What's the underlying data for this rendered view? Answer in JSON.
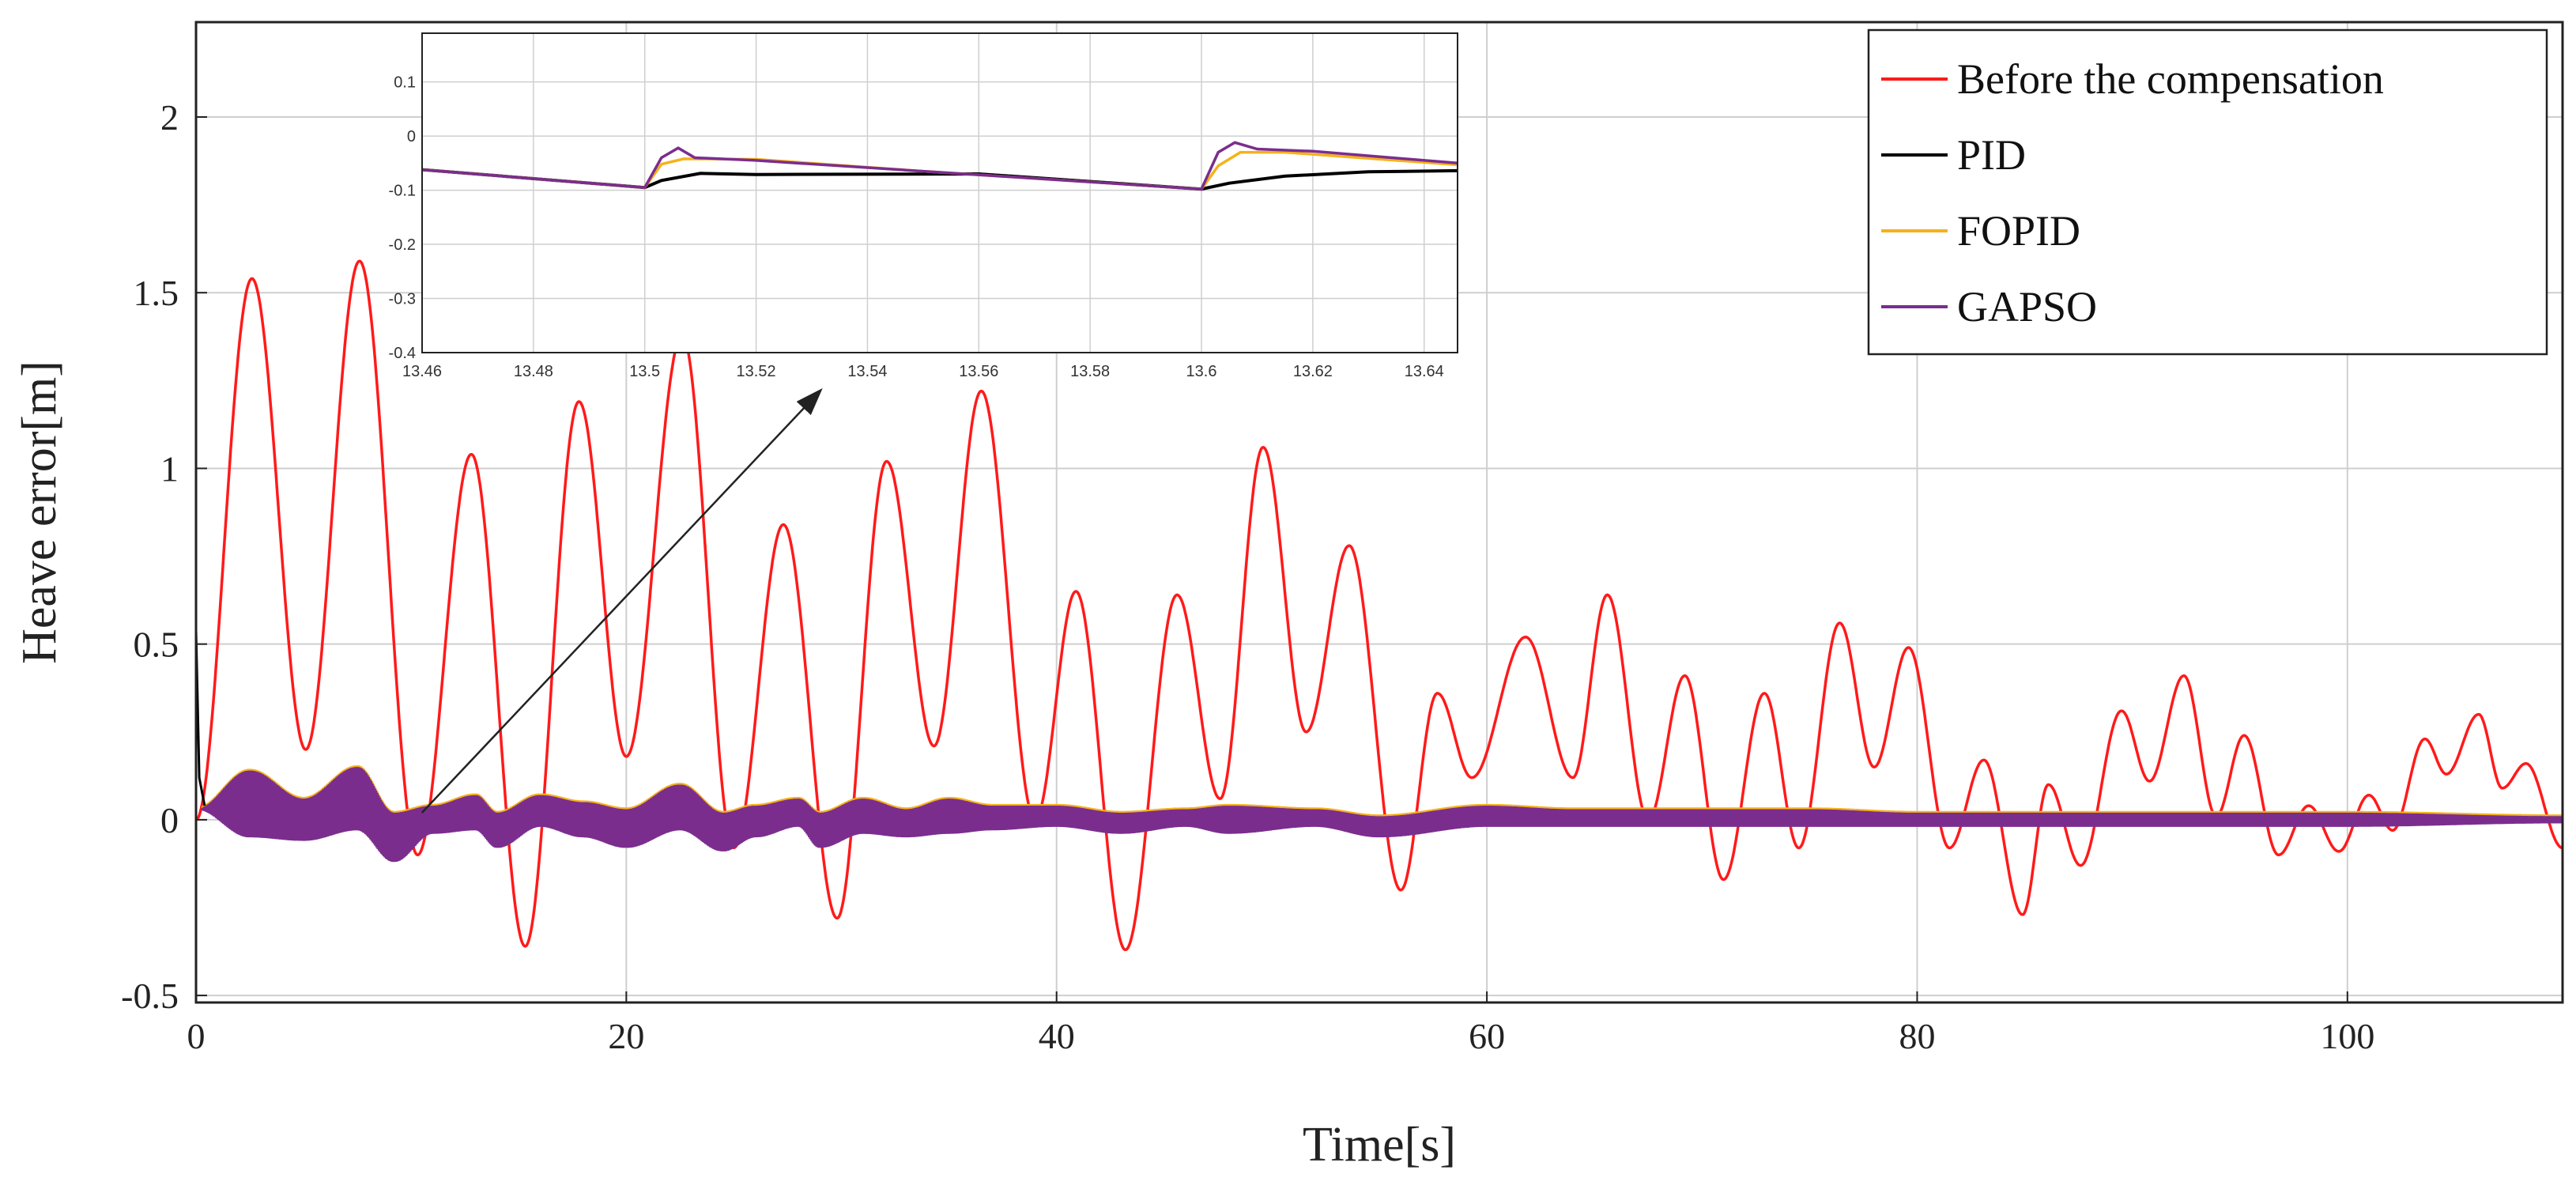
{
  "chart_data": {
    "type": "line",
    "title": "",
    "xlabel": "Time[s]",
    "ylabel": "Heave error[m]",
    "xlim": [
      0,
      110
    ],
    "ylim": [
      -0.52,
      2.27
    ],
    "grid": true,
    "legend_position": "top-right",
    "colors": {
      "before": "#ff1a1a",
      "pid": "#000000",
      "fopid": "#f5b21b",
      "gapso": "#7b2d8e",
      "grid": "#cfcfcf",
      "axis": "#222222"
    },
    "x_ticks": [
      {
        "value": 0,
        "label": "0"
      },
      {
        "value": 20,
        "label": "20"
      },
      {
        "value": 40,
        "label": "40"
      },
      {
        "value": 60,
        "label": "60"
      },
      {
        "value": 80,
        "label": "80"
      },
      {
        "value": 100,
        "label": "100"
      }
    ],
    "y_ticks": [
      {
        "value": -0.5,
        "label": "-0.5"
      },
      {
        "value": 0,
        "label": "0"
      },
      {
        "value": 0.5,
        "label": "0.5"
      },
      {
        "value": 1,
        "label": "1"
      },
      {
        "value": 1.5,
        "label": "1.5"
      },
      {
        "value": 2,
        "label": "2"
      }
    ],
    "legend": [
      {
        "key": "before",
        "label": "Before the compensation"
      },
      {
        "key": "pid",
        "label": "PID"
      },
      {
        "key": "fopid",
        "label": "FOPID"
      },
      {
        "key": "gapso",
        "label": "GAPSO"
      }
    ],
    "series": [
      {
        "name": "Before the compensation",
        "key": "before",
        "peaks": [
          [
            0,
            0.0
          ],
          [
            2.6,
            1.54
          ],
          [
            5.1,
            0.2
          ],
          [
            7.6,
            1.59
          ],
          [
            10.3,
            -0.1
          ],
          [
            12.8,
            1.04
          ],
          [
            15.3,
            -0.36
          ],
          [
            17.8,
            1.19
          ],
          [
            20.0,
            0.18
          ],
          [
            22.6,
            1.38
          ],
          [
            25.0,
            -0.08
          ],
          [
            27.3,
            0.84
          ],
          [
            29.8,
            -0.28
          ],
          [
            32.1,
            1.02
          ],
          [
            34.3,
            0.21
          ],
          [
            36.5,
            1.22
          ],
          [
            39.0,
            0.0
          ],
          [
            40.9,
            0.65
          ],
          [
            43.2,
            -0.37
          ],
          [
            45.6,
            0.64
          ],
          [
            47.6,
            0.06
          ],
          [
            49.6,
            1.06
          ],
          [
            51.6,
            0.25
          ],
          [
            53.6,
            0.78
          ],
          [
            56.0,
            -0.2
          ],
          [
            57.7,
            0.36
          ],
          [
            59.3,
            0.12
          ],
          [
            61.8,
            0.52
          ],
          [
            64.0,
            0.12
          ],
          [
            65.6,
            0.64
          ],
          [
            67.5,
            0.0
          ],
          [
            69.2,
            0.41
          ],
          [
            71.0,
            -0.17
          ],
          [
            72.9,
            0.36
          ],
          [
            74.5,
            -0.08
          ],
          [
            76.4,
            0.56
          ],
          [
            78.0,
            0.15
          ],
          [
            79.6,
            0.49
          ],
          [
            81.5,
            -0.08
          ],
          [
            83.1,
            0.17
          ],
          [
            84.9,
            -0.27
          ],
          [
            86.1,
            0.1
          ],
          [
            87.6,
            -0.13
          ],
          [
            89.5,
            0.31
          ],
          [
            90.8,
            0.11
          ],
          [
            92.4,
            0.41
          ],
          [
            93.9,
            0.01
          ],
          [
            95.2,
            0.24
          ],
          [
            96.8,
            -0.1
          ],
          [
            98.2,
            0.04
          ],
          [
            99.6,
            -0.09
          ],
          [
            101.0,
            0.07
          ],
          [
            102.1,
            -0.03
          ],
          [
            103.6,
            0.23
          ],
          [
            104.6,
            0.13
          ],
          [
            106.1,
            0.3
          ],
          [
            107.2,
            0.09
          ],
          [
            108.3,
            0.16
          ],
          [
            110,
            -0.08
          ]
        ]
      },
      {
        "name": "GAPSO",
        "key": "gapso",
        "envelope": [
          [
            0,
            0.03,
            0.03
          ],
          [
            2.5,
            -0.05,
            0.14
          ],
          [
            5,
            -0.06,
            0.06
          ],
          [
            7.5,
            -0.03,
            0.15
          ],
          [
            9.2,
            -0.12,
            0.02
          ],
          [
            11,
            -0.04,
            0.04
          ],
          [
            13,
            -0.03,
            0.07
          ],
          [
            14,
            -0.08,
            0.02
          ],
          [
            16,
            -0.02,
            0.07
          ],
          [
            18,
            -0.05,
            0.05
          ],
          [
            20,
            -0.08,
            0.03
          ],
          [
            22.5,
            -0.03,
            0.1
          ],
          [
            24.5,
            -0.09,
            0.02
          ],
          [
            26,
            -0.05,
            0.04
          ],
          [
            28,
            -0.02,
            0.06
          ],
          [
            29,
            -0.08,
            0.02
          ],
          [
            31,
            -0.04,
            0.06
          ],
          [
            33,
            -0.05,
            0.03
          ],
          [
            35,
            -0.04,
            0.06
          ],
          [
            37,
            -0.03,
            0.04
          ],
          [
            40,
            -0.02,
            0.04
          ],
          [
            43,
            -0.04,
            0.02
          ],
          [
            46,
            -0.02,
            0.03
          ],
          [
            48,
            -0.04,
            0.04
          ],
          [
            52,
            -0.02,
            0.03
          ],
          [
            55,
            -0.05,
            0.01
          ],
          [
            60,
            -0.02,
            0.04
          ],
          [
            64,
            -0.02,
            0.03
          ],
          [
            70,
            -0.02,
            0.03
          ],
          [
            75,
            -0.02,
            0.03
          ],
          [
            80,
            -0.02,
            0.02
          ],
          [
            90,
            -0.02,
            0.02
          ],
          [
            100,
            -0.02,
            0.02
          ],
          [
            110,
            -0.01,
            0.01
          ]
        ]
      },
      {
        "name": "PID",
        "key": "pid",
        "spike": [
          [
            0,
            0.54
          ],
          [
            0.15,
            0.12
          ],
          [
            0.4,
            0.04
          ]
        ]
      },
      {
        "name": "FOPID",
        "key": "fopid",
        "note_mean_offset": 0.005
      }
    ],
    "inset": {
      "xlim": [
        13.46,
        13.646
      ],
      "ylim": [
        -0.4,
        0.19
      ],
      "grid": true,
      "x_ticks": [
        {
          "value": 13.46,
          "label": "13.46"
        },
        {
          "value": 13.48,
          "label": "13.48"
        },
        {
          "value": 13.5,
          "label": "13.5"
        },
        {
          "value": 13.52,
          "label": "13.52"
        },
        {
          "value": 13.54,
          "label": "13.54"
        },
        {
          "value": 13.56,
          "label": "13.56"
        },
        {
          "value": 13.58,
          "label": "13.58"
        },
        {
          "value": 13.6,
          "label": "13.6"
        },
        {
          "value": 13.62,
          "label": "13.62"
        },
        {
          "value": 13.64,
          "label": "13.64"
        }
      ],
      "y_ticks": [
        {
          "value": 0.1,
          "label": "0.1"
        },
        {
          "value": 0,
          "label": "0"
        },
        {
          "value": -0.1,
          "label": "-0.1"
        },
        {
          "value": -0.2,
          "label": "-0.2"
        },
        {
          "value": -0.3,
          "label": "-0.3"
        },
        {
          "value": -0.4,
          "label": "-0.4"
        }
      ],
      "series": [
        {
          "key": "pid",
          "points": [
            [
              13.46,
              -0.062
            ],
            [
              13.5,
              -0.095
            ],
            [
              13.503,
              -0.082
            ],
            [
              13.51,
              -0.069
            ],
            [
              13.52,
              -0.071
            ],
            [
              13.56,
              -0.07
            ],
            [
              13.6,
              -0.098
            ],
            [
              13.605,
              -0.087
            ],
            [
              13.615,
              -0.074
            ],
            [
              13.63,
              -0.066
            ],
            [
              13.646,
              -0.064
            ]
          ]
        },
        {
          "key": "fopid",
          "points": [
            [
              13.46,
              -0.062
            ],
            [
              13.5,
              -0.095
            ],
            [
              13.503,
              -0.052
            ],
            [
              13.507,
              -0.042
            ],
            [
              13.52,
              -0.043
            ],
            [
              13.55,
              -0.065
            ],
            [
              13.6,
              -0.098
            ],
            [
              13.603,
              -0.055
            ],
            [
              13.607,
              -0.03
            ],
            [
              13.615,
              -0.03
            ],
            [
              13.646,
              -0.053
            ]
          ]
        },
        {
          "key": "gapso",
          "points": [
            [
              13.46,
              -0.062
            ],
            [
              13.5,
              -0.095
            ],
            [
              13.503,
              -0.04
            ],
            [
              13.506,
              -0.022
            ],
            [
              13.509,
              -0.04
            ],
            [
              13.52,
              -0.045
            ],
            [
              13.55,
              -0.065
            ],
            [
              13.6,
              -0.098
            ],
            [
              13.603,
              -0.03
            ],
            [
              13.606,
              -0.012
            ],
            [
              13.61,
              -0.024
            ],
            [
              13.62,
              -0.028
            ],
            [
              13.646,
              -0.05
            ]
          ]
        }
      ]
    },
    "annotation": {
      "type": "arrow",
      "from_data": [
        10.5,
        0.02
      ],
      "to_data": [
        29,
        1.22
      ]
    }
  }
}
